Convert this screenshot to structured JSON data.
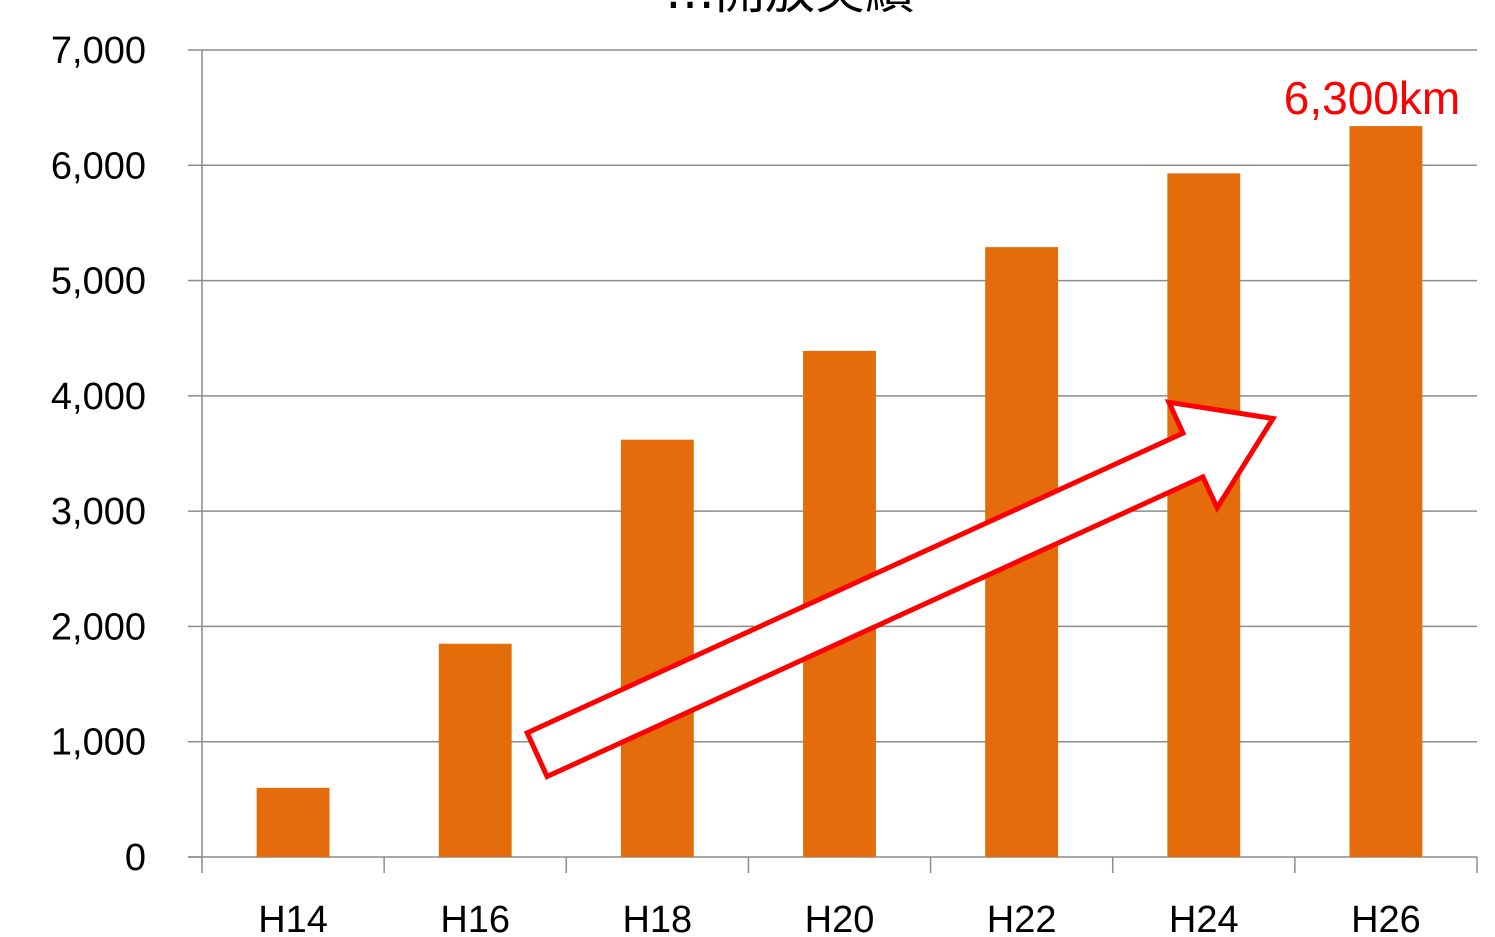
{
  "chart_data": {
    "type": "bar",
    "title": "…開放実績",
    "categories": [
      "H14",
      "H16",
      "H18",
      "H20",
      "H22",
      "H24",
      "H26"
    ],
    "values": [
      600,
      1850,
      3620,
      4390,
      5290,
      5930,
      6340
    ],
    "ylim": [
      0,
      7000
    ],
    "yticks": [
      0,
      1000,
      2000,
      3000,
      4000,
      5000,
      6000,
      7000
    ],
    "ytick_labels": [
      "0",
      "1,000",
      "2,000",
      "3,000",
      "4,000",
      "5,000",
      "6,000",
      "7,000"
    ],
    "grid": true,
    "legend": "none",
    "bar_color": "#E46C0A",
    "annotation": {
      "text": "6,300km",
      "color": "#FF0000",
      "category": "H26"
    },
    "trend_arrow": {
      "from_category": "H16",
      "to_category": "H26",
      "stroke": "#FF0000",
      "fill": "#FFFFFF"
    }
  }
}
